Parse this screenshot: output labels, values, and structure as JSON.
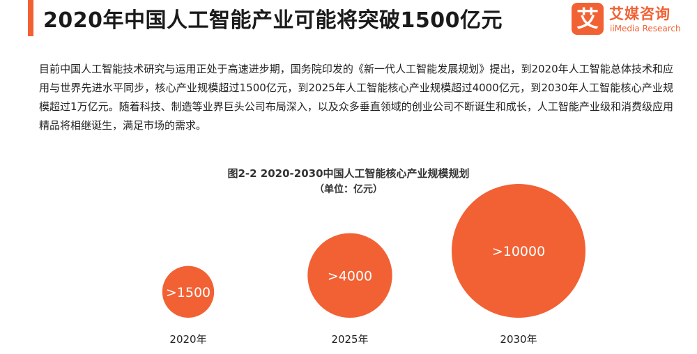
{
  "header": {
    "title": "2020年中国人工智能产业可能将突破1500亿元"
  },
  "logo": {
    "mark": "艾",
    "cn": "艾媒咨询",
    "en": "iiMedia Research"
  },
  "body": {
    "paragraph": "目前中国人工智能技术研究与运用正处于高速进步期，国务院印发的《新一代人工智能发展规划》提出，到2020年人工智能总体技术和应用与世界先进水平同步，核心产业规模超过1500亿元，到2025年人工智能核心产业规模超过4000亿元，到2030年人工智能核心产业规模超过1万亿元。随着科技、制造等业界巨头公司布局深入，以及众多垂直领域的创业公司不断诞生和成长，人工智能产业级和消费级应用精品将相继诞生，满足市场的需求。"
  },
  "colors": {
    "accent": "#f26134",
    "bubble": "#f26134"
  },
  "chart_data": {
    "type": "bubble",
    "title": "图2-2 2020-2030中国人工智能核心产业规模规划",
    "subtitle": "（单位：亿元）",
    "categories": [
      "2020年",
      "2025年",
      "2030年"
    ],
    "values": [
      1500,
      4000,
      10000
    ],
    "data_labels": [
      ">1500",
      ">4000",
      ">10000"
    ]
  }
}
